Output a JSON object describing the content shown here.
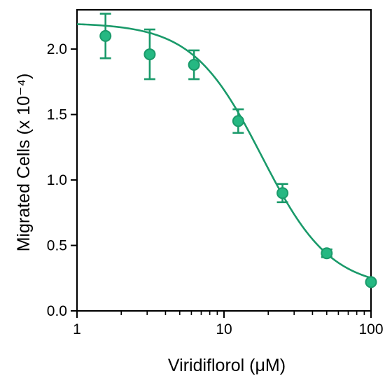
{
  "chart_data": {
    "type": "scatter",
    "title": "",
    "xlabel": "Viridiflorol (μM)",
    "ylabel": "Migrated Cells (x 10⁻⁴)",
    "x_scale": "log",
    "xlim": [
      1,
      100
    ],
    "ylim": [
      0,
      2.3
    ],
    "x_ticks": [
      1,
      10,
      100
    ],
    "x_tick_labels": [
      "1",
      "10",
      "100"
    ],
    "y_ticks": [
      0,
      0.5,
      1.0,
      1.5,
      2.0
    ],
    "y_tick_labels": [
      "0.0",
      "0.5",
      "1.0",
      "1.5",
      "2.0"
    ],
    "grid": false,
    "legend": "none",
    "color": "#1a9a6a",
    "marker_fill": "#25b882",
    "series": [
      {
        "x": [
          1.5625,
          3.125,
          6.25,
          12.5,
          25,
          50,
          100
        ],
        "y": [
          2.1,
          1.96,
          1.88,
          1.45,
          0.9,
          0.44,
          0.22
        ],
        "error": [
          0.17,
          0.19,
          0.11,
          0.09,
          0.07,
          0.03,
          0.01
        ],
        "fit_curve": {
          "model": "sigmoidal dose-response",
          "top": 2.2,
          "bottom": 0.17,
          "ic50": 18,
          "hill_slope": 1.85
        }
      }
    ]
  }
}
